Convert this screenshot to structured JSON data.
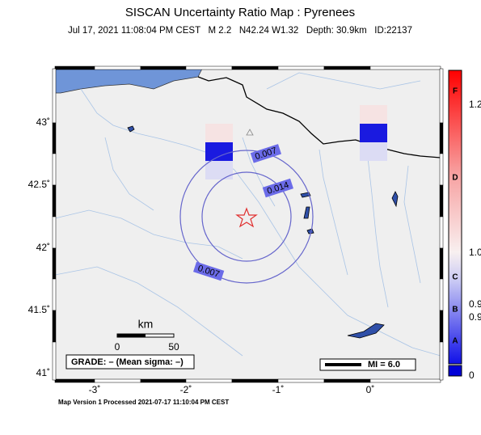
{
  "header": {
    "title": "SISCAN Uncertainty Ratio Map : Pyrenees",
    "subtitle": "Jul 17, 2021 11:08:04 PM CEST   M 2.2   N42.24 W1.32   Depth: 30.9km   ID:22137"
  },
  "map": {
    "lat_labels": [
      "43˚",
      "42.5˚",
      "42˚",
      "41.5˚",
      "41˚"
    ],
    "lon_labels": [
      "-3˚",
      "-2˚",
      "-1˚",
      "0˚"
    ],
    "contour_labels": [
      "0.007",
      "0.014",
      "0.007"
    ],
    "scale": {
      "unit": "km",
      "start": "0",
      "end": "50"
    },
    "grade": "GRADE: – (Mean sigma: –)",
    "intensity_legend": "MI = 6.0"
  },
  "colorbar": {
    "grades": [
      "F",
      "D",
      "C",
      "B",
      "A"
    ],
    "labels": [
      "1.2",
      "1.0",
      "0.9",
      "0.9",
      "0"
    ]
  },
  "footer": "Map Version 1 Processed 2021-07-17 11:10:04 PM CEST"
}
